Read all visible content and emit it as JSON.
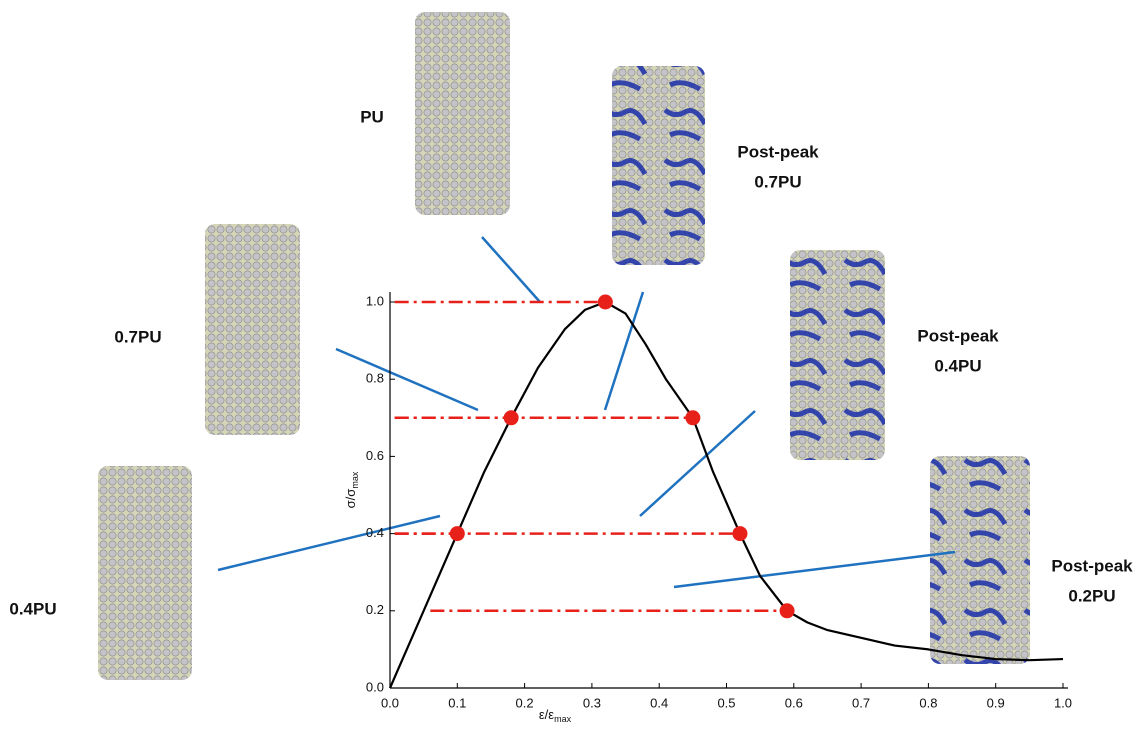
{
  "chart_data": {
    "type": "line",
    "x_label": {
      "main": "ε/ε",
      "sub": "max"
    },
    "y_label": {
      "main": "σ/σ",
      "sub": "max"
    },
    "xlim": [
      0,
      1
    ],
    "ylim": [
      0,
      1
    ],
    "xticks": [
      {
        "value": 0,
        "label": "0.0"
      },
      0.1,
      0.2,
      0.3,
      0.4,
      0.5,
      0.6,
      0.7,
      0.8,
      0.9,
      {
        "value": 1,
        "label": "1.0"
      }
    ],
    "yticks": [
      {
        "value": 0,
        "label": "0.0"
      },
      0.2,
      0.4,
      0.6,
      0.8,
      {
        "value": 1,
        "label": "1.0"
      }
    ],
    "series": [
      {
        "color": "#000000",
        "x": [
          0,
          0.02,
          0.05,
          0.08,
          0.1,
          0.14,
          0.18,
          0.22,
          0.26,
          0.29,
          0.32,
          0.35,
          0.38,
          0.41,
          0.45,
          0.48,
          0.52,
          0.55,
          0.59,
          0.62,
          0.65,
          0.7,
          0.75,
          0.8,
          0.85,
          0.9,
          0.95,
          1.0
        ],
        "values": [
          0,
          0.08,
          0.2,
          0.32,
          0.4,
          0.56,
          0.7,
          0.83,
          0.93,
          0.98,
          1.0,
          0.97,
          0.89,
          0.8,
          0.7,
          0.56,
          0.4,
          0.29,
          0.2,
          0.17,
          0.15,
          0.13,
          0.11,
          0.1,
          0.085,
          0.075,
          0.072,
          0.075
        ]
      },
      {
        "color": "#e8201a",
        "x": [
          0.32,
          0.18,
          0.45,
          0.1,
          0.52,
          0.59
        ],
        "values": [
          1.0,
          0.7,
          0.7,
          0.4,
          0.4,
          0.2
        ]
      }
    ],
    "annotations": [
      {
        "lines": [
          "PU"
        ]
      },
      {
        "lines": [
          "Post-peak",
          "0.7PU"
        ]
      },
      {
        "lines": [
          "0.7PU"
        ]
      },
      {
        "lines": [
          "Post-peak",
          "0.4PU"
        ]
      },
      {
        "lines": [
          "0.4PU"
        ]
      },
      {
        "lines": [
          "Post-peak",
          "0.2PU"
        ]
      }
    ]
  }
}
